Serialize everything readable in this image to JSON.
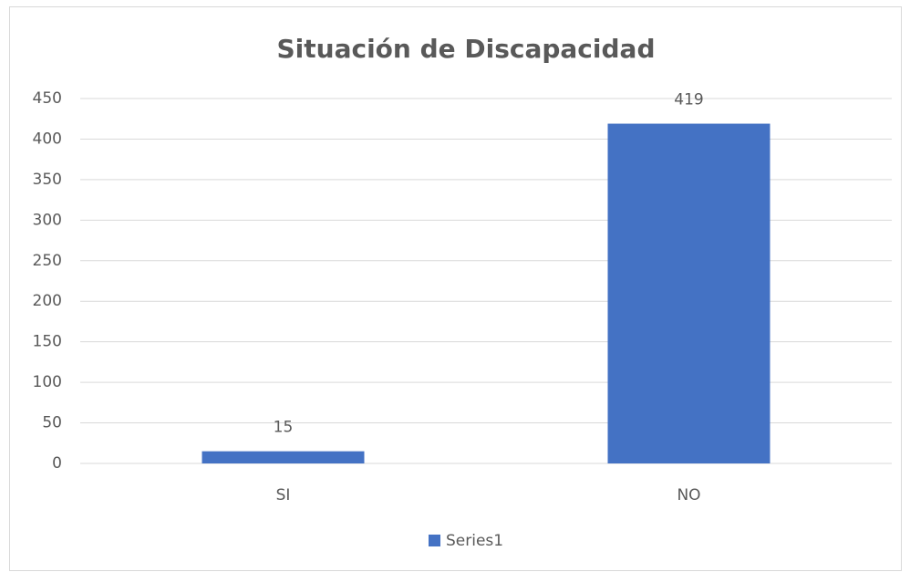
{
  "chart_data": {
    "type": "bar",
    "title": "Situación de Discapacidad",
    "categories": [
      "SI",
      "NO"
    ],
    "series": [
      {
        "name": "Series1",
        "color": "#4472c4",
        "values": [
          15,
          419
        ]
      }
    ],
    "ylim": [
      0,
      450
    ],
    "yticks": [
      0,
      50,
      100,
      150,
      200,
      250,
      300,
      350,
      400,
      450
    ],
    "grid": true,
    "legend": "bottom"
  }
}
